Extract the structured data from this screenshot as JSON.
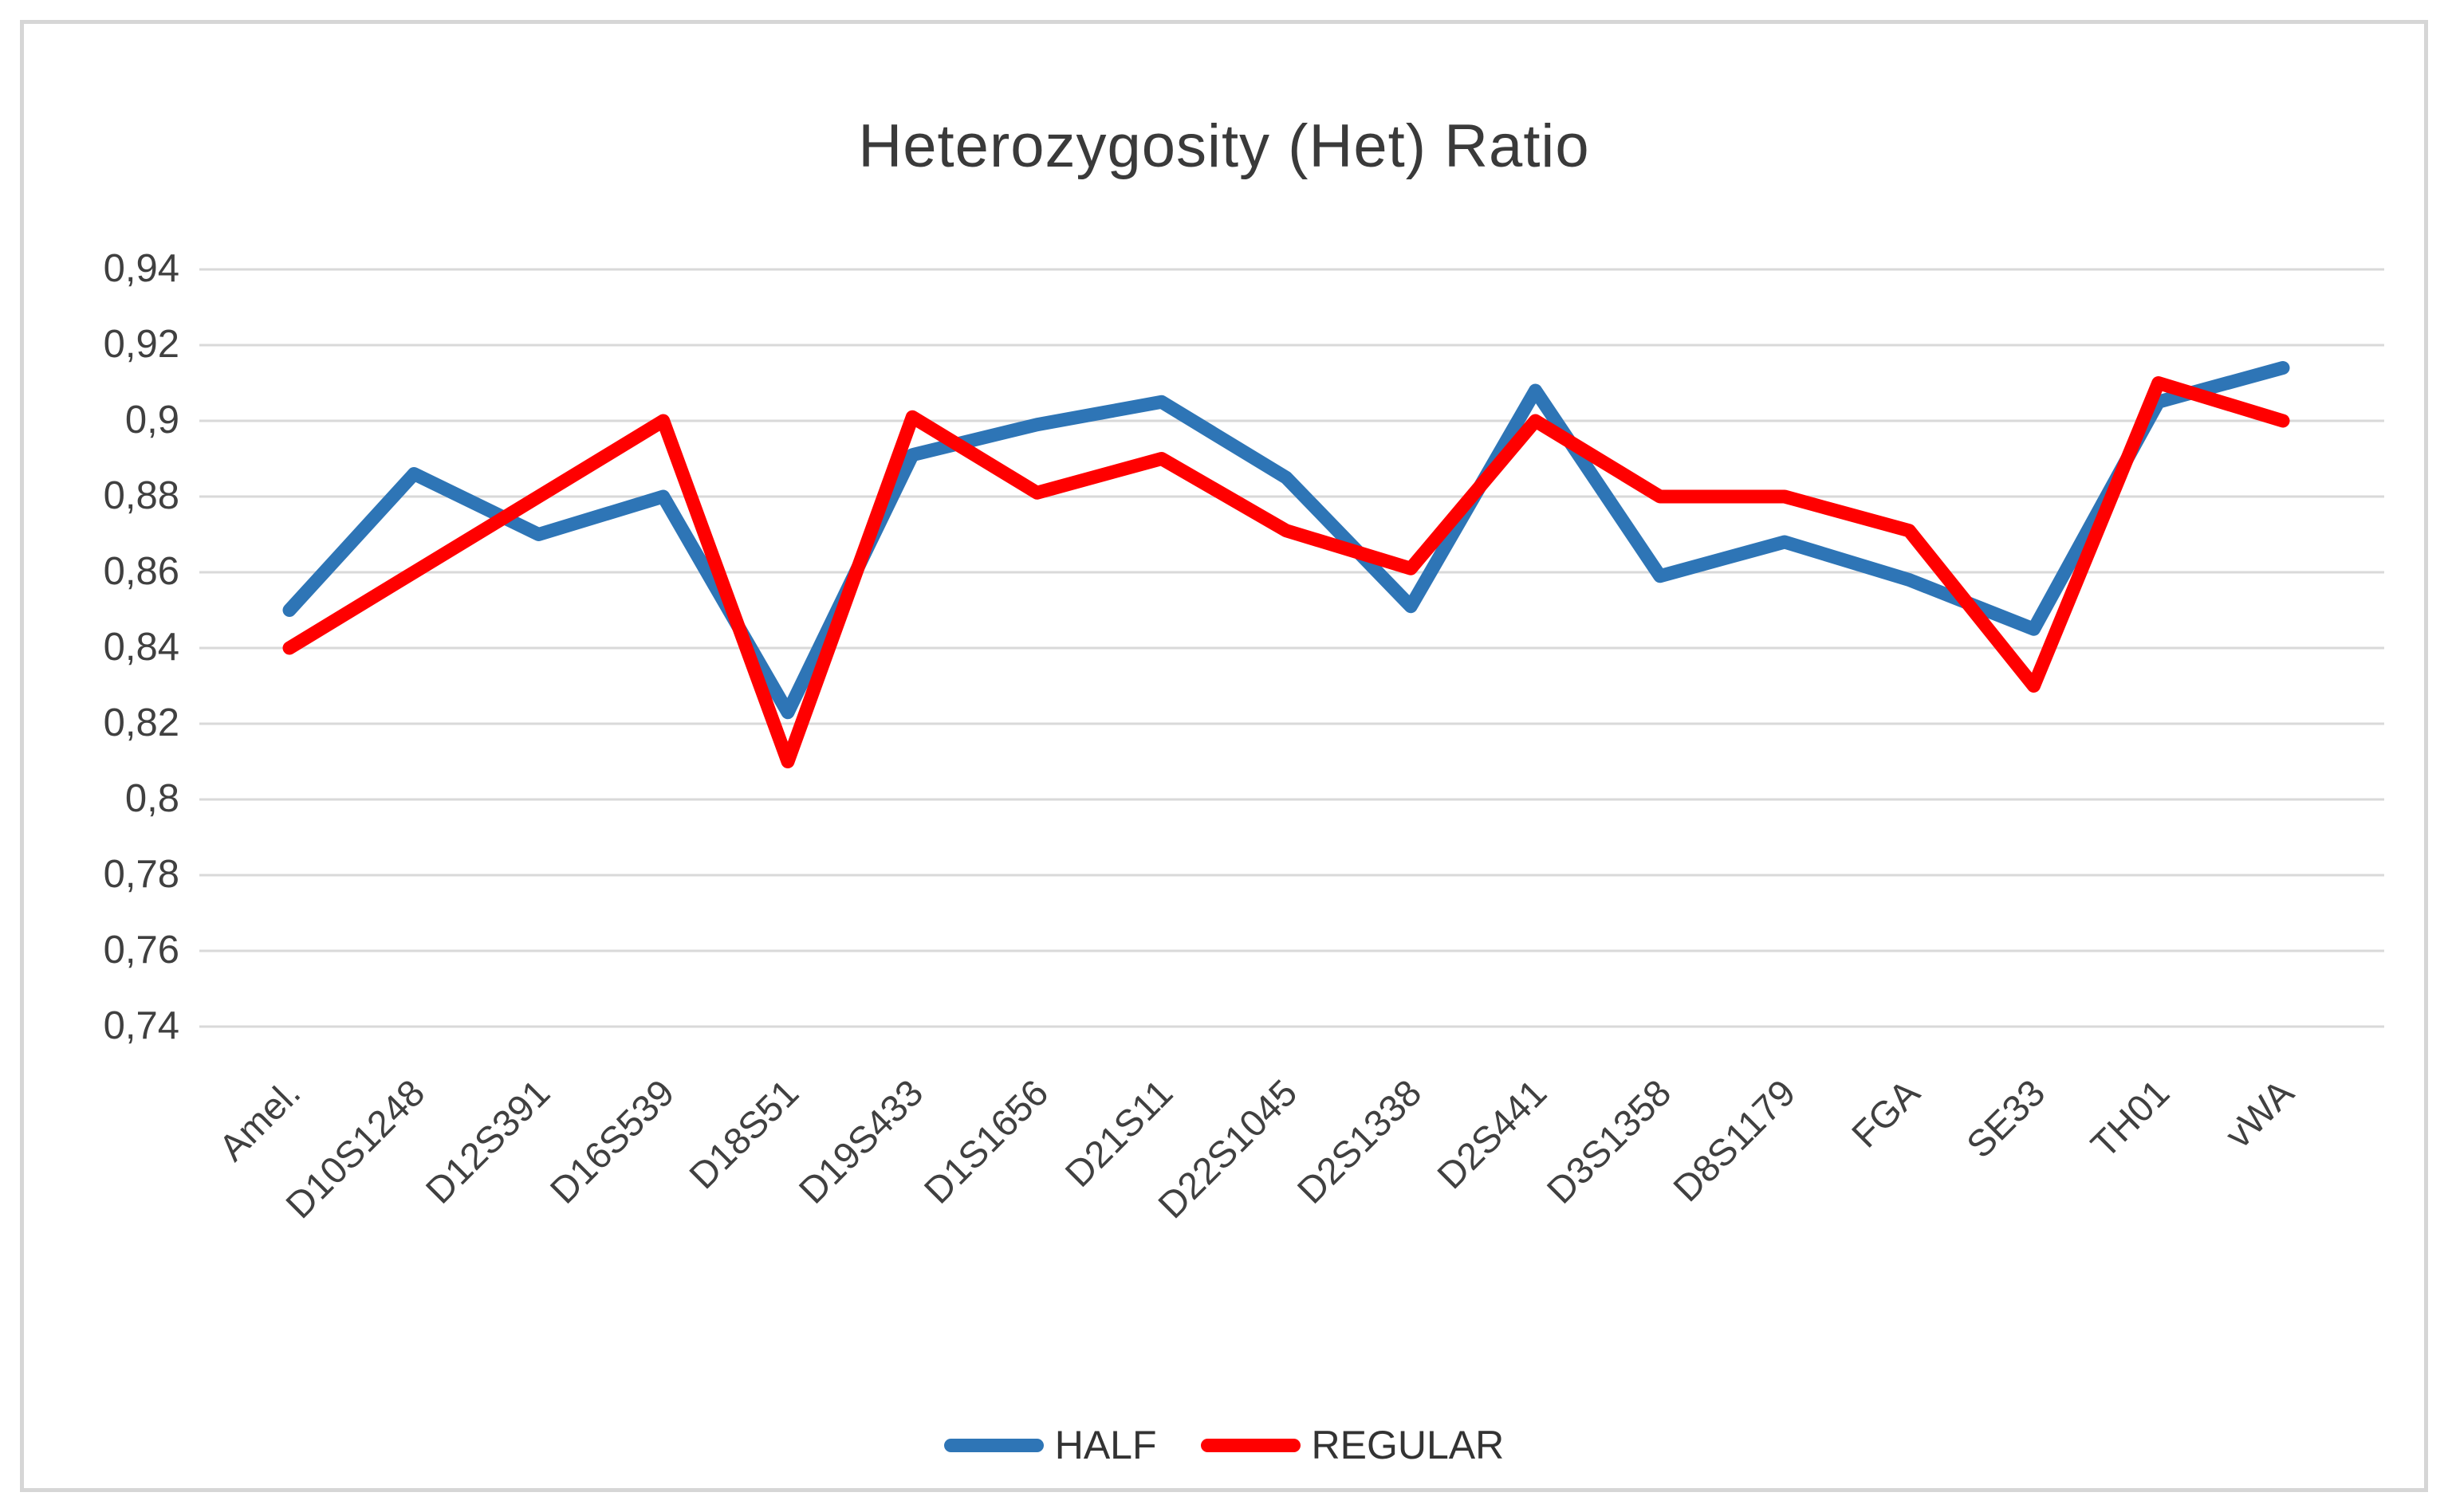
{
  "chart_data": {
    "type": "line",
    "title": "Heterozygosity (Het) Ratio",
    "xlabel": "",
    "ylabel": "",
    "categories": [
      "Amel.",
      "D10S1248",
      "D12S391",
      "D16S539",
      "D18S51",
      "D19S433",
      "D1S1656",
      "D21S11",
      "D22S1045",
      "D2S1338",
      "D2S441",
      "D3S1358",
      "D8S1179",
      "FGA",
      "SE33",
      "TH01",
      "vWA"
    ],
    "series": [
      {
        "name": "HALF",
        "color": "#2E75B6",
        "values": [
          0.85,
          0.886,
          0.87,
          0.88,
          0.823,
          0.891,
          0.899,
          0.905,
          0.885,
          0.851,
          0.908,
          0.859,
          0.868,
          0.858,
          0.845,
          0.905,
          0.914
        ]
      },
      {
        "name": "REGULAR",
        "color": "#FF0000",
        "values": [
          0.84,
          0.86,
          0.88,
          0.9,
          0.81,
          0.901,
          0.881,
          0.89,
          0.871,
          0.861,
          0.9,
          0.88,
          0.88,
          0.871,
          0.83,
          0.91,
          0.9
        ]
      }
    ],
    "y_axis": {
      "min": 0.74,
      "max": 0.94,
      "step": 0.02,
      "tick_labels": [
        "0,94",
        "0,92",
        "0,9",
        "0,88",
        "0,86",
        "0,84",
        "0,82",
        "0,8",
        "0,78",
        "0,76",
        "0,74"
      ]
    },
    "grid": true,
    "legend_position": "bottom",
    "colors": {
      "gridline": "#D9D9D9",
      "axis_text": "#404040",
      "title_text": "#3A3A3A",
      "figure_border": "#D6D6D6",
      "background": "#FFFFFF"
    }
  }
}
